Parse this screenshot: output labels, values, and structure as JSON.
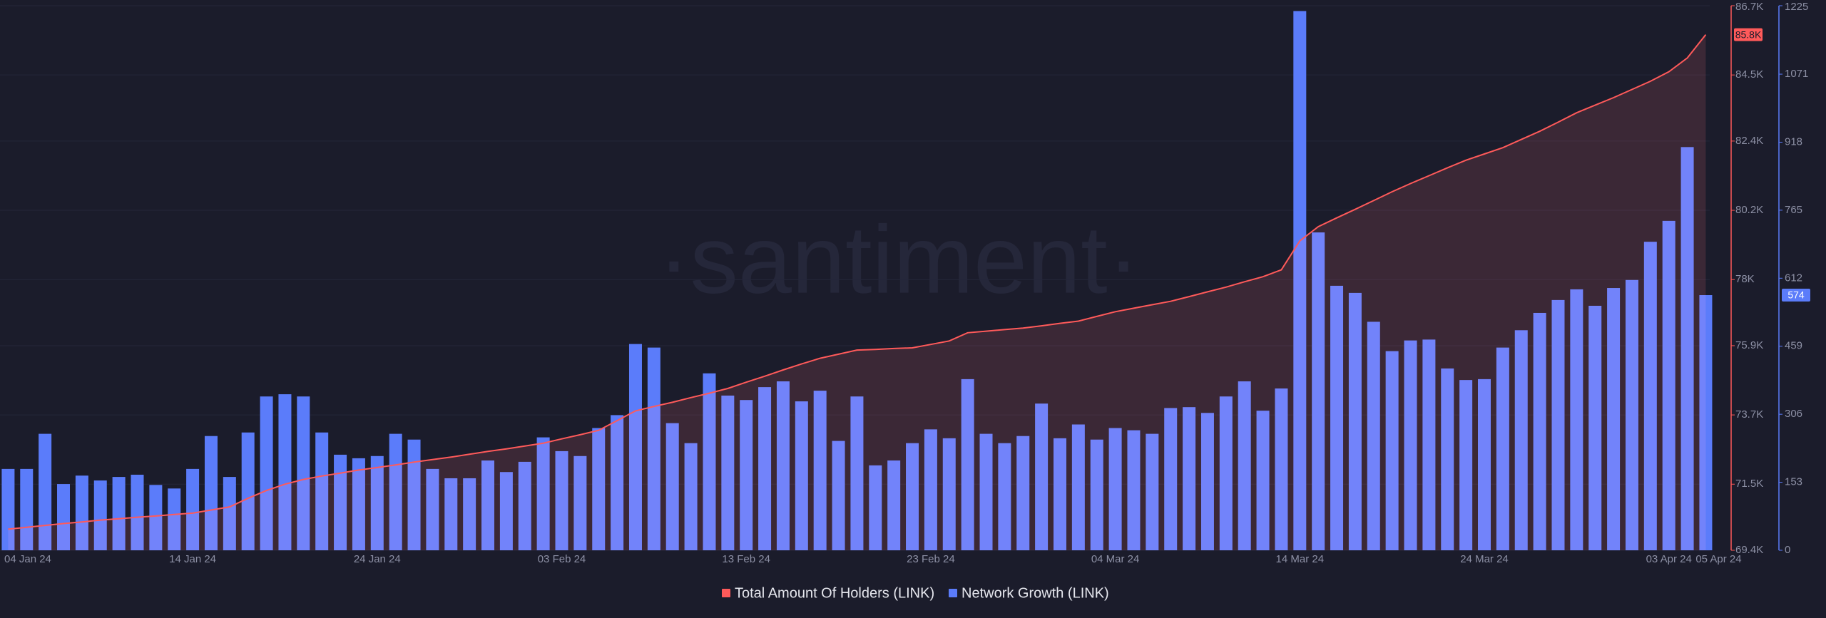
{
  "chart_data": {
    "type": "combo",
    "watermark": "·santiment·",
    "categories": [
      "04 Jan 24",
      null,
      null,
      null,
      null,
      null,
      null,
      null,
      null,
      null,
      "14 Jan 24",
      null,
      null,
      null,
      null,
      null,
      null,
      null,
      null,
      null,
      "24 Jan 24",
      null,
      null,
      null,
      null,
      null,
      null,
      null,
      null,
      null,
      "03 Feb 24",
      null,
      null,
      null,
      null,
      null,
      null,
      null,
      null,
      null,
      "13 Feb 24",
      null,
      null,
      null,
      null,
      null,
      null,
      null,
      null,
      null,
      "23 Feb 24",
      null,
      null,
      null,
      null,
      null,
      null,
      null,
      null,
      null,
      "04 Mar 24",
      null,
      null,
      null,
      null,
      null,
      null,
      null,
      null,
      null,
      "14 Mar 24",
      null,
      null,
      null,
      null,
      null,
      null,
      null,
      null,
      null,
      "24 Mar 24",
      null,
      null,
      null,
      null,
      null,
      null,
      null,
      null,
      null,
      "03 Apr 24",
      null,
      "05 Apr 24"
    ],
    "series": [
      {
        "name": "Total Amount Of Holders (LINK)",
        "type": "line",
        "color": "#ff5a5a",
        "last_label": "85.8K",
        "values": [
          70070,
          70130,
          70190,
          70250,
          70300,
          70360,
          70400,
          70450,
          70490,
          70540,
          70580,
          70680,
          70780,
          71050,
          71300,
          71500,
          71650,
          71760,
          71850,
          71950,
          72030,
          72110,
          72200,
          72280,
          72360,
          72450,
          72540,
          72620,
          72710,
          72800,
          72940,
          73070,
          73210,
          73520,
          73830,
          73970,
          74100,
          74250,
          74390,
          74540,
          74740,
          74930,
          75130,
          75320,
          75500,
          75630,
          75760,
          75780,
          75810,
          75830,
          75940,
          76050,
          76310,
          76360,
          76410,
          76460,
          76530,
          76610,
          76680,
          76830,
          76980,
          77090,
          77200,
          77310,
          77460,
          77610,
          77760,
          77930,
          78090,
          78310,
          79230,
          79680,
          79960,
          80230,
          80510,
          80790,
          81050,
          81300,
          81550,
          81790,
          81990,
          82190,
          82450,
          82710,
          83000,
          83300,
          83540,
          83780,
          84040,
          84300,
          84600,
          85040,
          85780
        ]
      },
      {
        "name": "Network Growth (LINK)",
        "type": "bar",
        "axis": "y2",
        "color": "#5b7cfa",
        "last_label": "574",
        "values": [
          183,
          183,
          262,
          149,
          168,
          157,
          165,
          170,
          147,
          139,
          183,
          257,
          165,
          265,
          346,
          351,
          346,
          265,
          215,
          207,
          212,
          262,
          249,
          183,
          162,
          162,
          202,
          176,
          199,
          254,
          223,
          212,
          275,
          304,
          464,
          456,
          286,
          241,
          398,
          348,
          338,
          367,
          380,
          335,
          359,
          246,
          346,
          191,
          202,
          241,
          272,
          252,
          385,
          262,
          241,
          257,
          330,
          252,
          283,
          249,
          275,
          270,
          262,
          320,
          322,
          309,
          346,
          380,
          314,
          364,
          1213,
          715,
          595,
          579,
          514,
          448,
          472,
          474,
          409,
          383,
          385,
          456,
          495,
          534,
          563,
          587,
          550,
          590,
          608,
          694,
          741,
          907,
          574
        ]
      }
    ],
    "ylim": [
      69400,
      86700
    ],
    "yticks": [
      {
        "value": 69400,
        "label": "69.4K"
      },
      {
        "value": 71500,
        "label": "71.5K"
      },
      {
        "value": 73700,
        "label": "73.7K"
      },
      {
        "value": 75900,
        "label": "75.9K"
      },
      {
        "value": 78000,
        "label": "78K"
      },
      {
        "value": 80200,
        "label": "80.2K"
      },
      {
        "value": 82400,
        "label": "82.4K"
      },
      {
        "value": 84500,
        "label": "84.5K"
      },
      {
        "value": 86700,
        "label": "86.7K"
      }
    ],
    "y2lim": [
      0,
      1225
    ],
    "y2ticks": [
      0,
      153,
      306,
      459,
      612,
      765,
      918,
      1071,
      1225
    ],
    "grid": true
  }
}
